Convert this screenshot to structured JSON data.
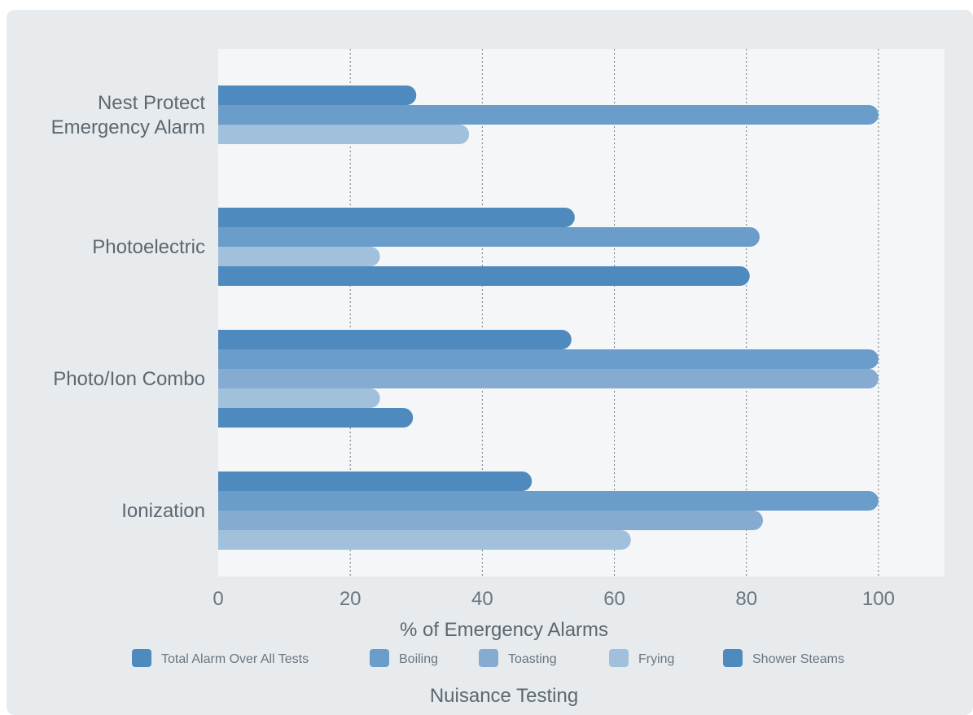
{
  "chart_data": {
    "type": "bar",
    "orientation": "horizontal",
    "categories": [
      "Nest Protect\nEmergency Alarm",
      "Photoelectric",
      "Photo/Ion Combo",
      "Ionization"
    ],
    "series": [
      {
        "name": "Total Alarm Over All Tests",
        "color": "#4f8abf",
        "values": [
          30,
          54,
          53.5,
          47.5
        ]
      },
      {
        "name": "Boiling",
        "color": "#6a9dc9",
        "values": [
          100,
          82,
          100,
          100
        ]
      },
      {
        "name": "Toasting",
        "color": "#86abd0",
        "values": [
          null,
          null,
          100,
          82.5
        ]
      },
      {
        "name": "Frying",
        "color": "#a1c0dc",
        "values": [
          38,
          24.5,
          24.5,
          62.5
        ]
      },
      {
        "name": "Shower Steams",
        "color": "#4f8abf",
        "values": [
          null,
          80.5,
          29.5,
          null
        ]
      }
    ],
    "xlabel": "% of Emergency Alarms",
    "subtitle": "Nuisance Testing",
    "xlim": [
      0,
      110
    ],
    "xticks": [
      0,
      20,
      40,
      60,
      80,
      100
    ],
    "grid": "vertical dotted",
    "legend_position": "bottom"
  }
}
